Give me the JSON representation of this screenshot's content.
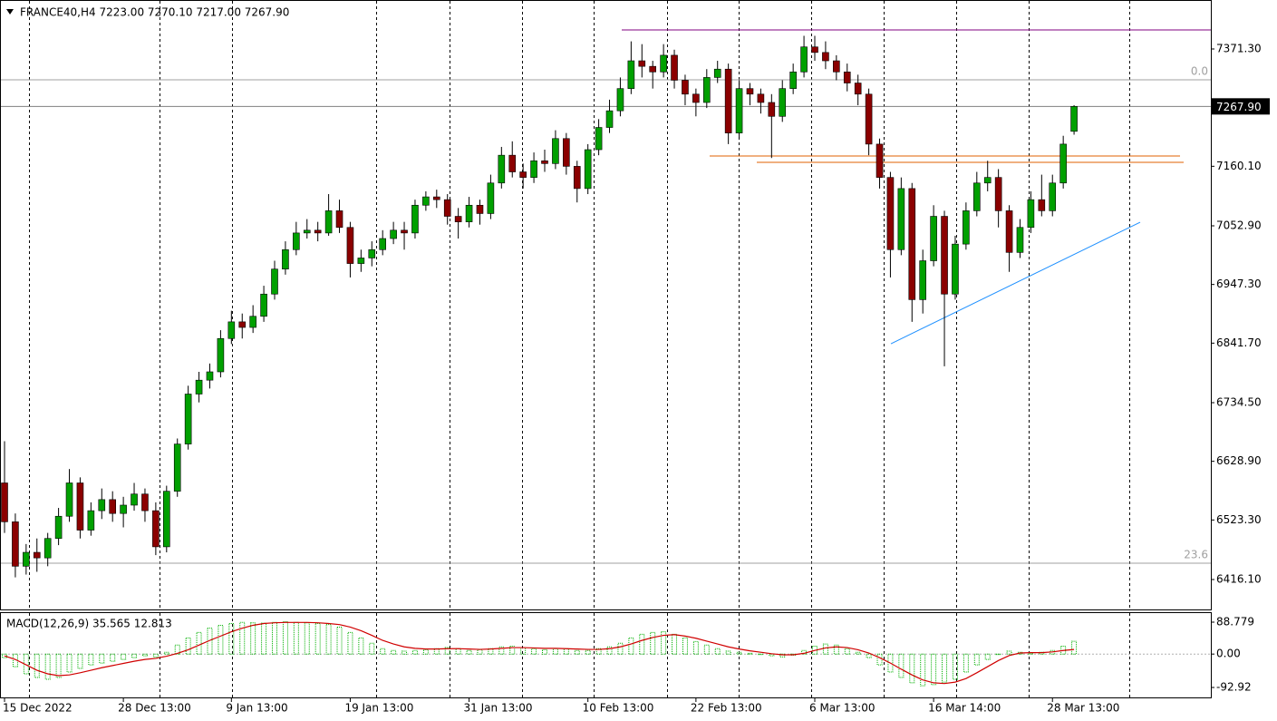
{
  "chart_data": [
    {
      "type": "candlestick",
      "title": "FRANCE40,H4  7223.00 7270.10 7217.00 7267.90",
      "categories": [
        "15 Dec 2022",
        null,
        null,
        null,
        null,
        null,
        null,
        null,
        null,
        null,
        null,
        "28 Dec 13:00",
        null,
        null,
        null,
        null,
        null,
        null,
        null,
        null,
        null,
        "9 Jan 13:00",
        null,
        null,
        null,
        null,
        null,
        null,
        null,
        null,
        null,
        null,
        "19 Jan 13:00",
        null,
        null,
        null,
        null,
        null,
        null,
        null,
        null,
        null,
        null,
        "31 Jan 13:00",
        null,
        null,
        null,
        null,
        null,
        null,
        null,
        null,
        null,
        null,
        "10 Feb 13:00",
        null,
        null,
        null,
        null,
        null,
        null,
        null,
        null,
        null,
        "22 Feb 13:00",
        null,
        null,
        null,
        null,
        null,
        null,
        null,
        null,
        null,
        null,
        "6 Mar 13:00",
        null,
        null,
        null,
        null,
        null,
        null,
        null,
        null,
        null,
        null,
        "16 Mar 14:00",
        null,
        null,
        null,
        null,
        null,
        null,
        null,
        null,
        null,
        null,
        "28 Mar 13:00",
        null,
        null
      ],
      "open": [
        6590,
        6520,
        6440,
        6465,
        6455,
        6490,
        6530,
        6590,
        6505,
        6540,
        6560,
        6535,
        6550,
        6570,
        6540,
        6475,
        6575,
        6660,
        6750,
        6775,
        6790,
        6850,
        6880,
        6870,
        6890,
        6930,
        6975,
        7010,
        7040,
        7045,
        7040,
        7080,
        7050,
        6985,
        6995,
        7010,
        7030,
        7045,
        7040,
        7090,
        7105,
        7100,
        7070,
        7060,
        7090,
        7075,
        7130,
        7180,
        7150,
        7140,
        7170,
        7165,
        7210,
        7160,
        7120,
        7190,
        7230,
        7260,
        7300,
        7350,
        7340,
        7330,
        7360,
        7315,
        7290,
        7275,
        7320,
        7335,
        7220,
        7300,
        7290,
        7275,
        7250,
        7300,
        7330,
        7375,
        7365,
        7350,
        7330,
        7310,
        7290,
        7200,
        7140,
        7010,
        7120,
        6920,
        6990,
        7070,
        6930,
        7020,
        7080,
        7130,
        7140,
        7080,
        7005,
        7050,
        7100,
        7080,
        7130,
        7223
      ],
      "high": [
        6665,
        6535,
        6480,
        6490,
        6500,
        6545,
        6615,
        6600,
        6555,
        6580,
        6575,
        6565,
        6590,
        6580,
        6555,
        6585,
        6670,
        6765,
        6790,
        6805,
        6865,
        6900,
        6895,
        6910,
        6945,
        6990,
        7025,
        7060,
        7065,
        7060,
        7110,
        7100,
        7060,
        7010,
        7025,
        7045,
        7060,
        7060,
        7100,
        7115,
        7118,
        7110,
        7085,
        7105,
        7100,
        7145,
        7195,
        7205,
        7165,
        7185,
        7190,
        7225,
        7220,
        7170,
        7200,
        7245,
        7280,
        7320,
        7385,
        7380,
        7350,
        7380,
        7370,
        7325,
        7300,
        7335,
        7350,
        7345,
        7315,
        7310,
        7300,
        7290,
        7315,
        7345,
        7395,
        7395,
        7385,
        7360,
        7345,
        7325,
        7300,
        7210,
        7150,
        7140,
        7130,
        7010,
        7090,
        7080,
        7035,
        7095,
        7150,
        7170,
        7155,
        7090,
        7065,
        7115,
        7145,
        7145,
        7215,
        7270.1
      ],
      "low": [
        6500,
        6420,
        6425,
        6430,
        6440,
        6478,
        6520,
        6490,
        6495,
        6525,
        6520,
        6510,
        6540,
        6520,
        6460,
        6465,
        6565,
        6650,
        6735,
        6760,
        6780,
        6840,
        6850,
        6860,
        6880,
        6920,
        6965,
        7000,
        7030,
        7025,
        7035,
        7040,
        6960,
        6970,
        6980,
        7000,
        7020,
        7010,
        7030,
        7080,
        7085,
        7055,
        7030,
        7050,
        7055,
        7065,
        7120,
        7140,
        7120,
        7130,
        7150,
        7155,
        7145,
        7095,
        7110,
        7180,
        7220,
        7250,
        7290,
        7320,
        7300,
        7320,
        7300,
        7270,
        7250,
        7265,
        7310,
        7200,
        7210,
        7270,
        7255,
        7175,
        7240,
        7290,
        7320,
        7350,
        7335,
        7315,
        7295,
        7270,
        7180,
        7120,
        6960,
        7000,
        6880,
        6895,
        6980,
        6800,
        6920,
        7010,
        7070,
        7115,
        7050,
        6970,
        6995,
        7040,
        7070,
        7070,
        7120,
        7217
      ],
      "close": [
        6520,
        6440,
        6465,
        6455,
        6490,
        6530,
        6590,
        6505,
        6540,
        6560,
        6535,
        6550,
        6570,
        6540,
        6475,
        6575,
        6660,
        6750,
        6775,
        6790,
        6850,
        6880,
        6870,
        6890,
        6930,
        6975,
        7010,
        7040,
        7045,
        7040,
        7080,
        7050,
        6985,
        6995,
        7010,
        7030,
        7045,
        7040,
        7090,
        7105,
        7100,
        7070,
        7060,
        7090,
        7075,
        7130,
        7180,
        7150,
        7140,
        7170,
        7165,
        7210,
        7160,
        7120,
        7190,
        7230,
        7260,
        7300,
        7350,
        7340,
        7330,
        7360,
        7315,
        7290,
        7275,
        7320,
        7335,
        7220,
        7300,
        7290,
        7275,
        7250,
        7300,
        7330,
        7375,
        7365,
        7350,
        7330,
        7310,
        7290,
        7200,
        7140,
        7010,
        7120,
        6920,
        6990,
        7070,
        6930,
        7020,
        7080,
        7130,
        7140,
        7080,
        7005,
        7050,
        7100,
        7080,
        7130,
        7200,
        7267.9
      ],
      "colors": {
        "up": "#00a000",
        "down": "#8b0000",
        "wick": "#000000"
      },
      "ylim": [
        6362.2,
        7451.3
      ],
      "yticks": [
        {
          "value": 7371.3,
          "label": "7371.30"
        },
        {
          "value": 7160.1,
          "label": "7160.10"
        },
        {
          "value": 7052.9,
          "label": "7052.90"
        },
        {
          "value": 6947.3,
          "label": "6947.30"
        },
        {
          "value": 6841.7,
          "label": "6841.70"
        },
        {
          "value": 6734.5,
          "label": "6734.50"
        },
        {
          "value": 6628.9,
          "label": "6628.90"
        },
        {
          "value": 6523.3,
          "label": "6523.30"
        },
        {
          "value": 6416.1,
          "label": "6416.10"
        }
      ],
      "last_price": {
        "value": 7267.9,
        "label": "7267.90"
      },
      "levels": [
        {
          "value": 7315.8,
          "label": "0.0"
        },
        {
          "value": 6445.5,
          "label": "23.6"
        }
      ],
      "hlines": [
        {
          "value": 7405.6,
          "color": "#800080"
        },
        {
          "value": 7178.6,
          "color": "#e06000"
        },
        {
          "value": 7167.2,
          "color": "#e06000"
        }
      ],
      "trendline": {
        "color": "#1e90ff",
        "values": [
          6840.6,
          7059.4
        ]
      }
    },
    {
      "type": "macd",
      "title": "MACD(12,26,9) 35.565 12.813",
      "histogram": {
        "color": "#00b000",
        "values": [
          -10,
          -35,
          -55,
          -65,
          -70,
          -65,
          -50,
          -40,
          -30,
          -25,
          -20,
          -15,
          -10,
          -5,
          -8,
          5,
          25,
          45,
          60,
          72,
          80,
          85,
          88,
          87,
          86,
          88,
          90,
          88,
          87,
          85,
          82,
          75,
          60,
          45,
          30,
          15,
          10,
          8,
          10,
          12,
          15,
          18,
          15,
          10,
          12,
          15,
          20,
          22,
          18,
          15,
          12,
          15,
          15,
          10,
          10,
          15,
          20,
          30,
          45,
          55,
          60,
          62,
          55,
          45,
          35,
          25,
          15,
          8,
          5,
          2,
          0,
          -5,
          -8,
          -3,
          10,
          22,
          28,
          25,
          15,
          5,
          -10,
          -30,
          -50,
          -65,
          -80,
          -88,
          -85,
          -78,
          -70,
          -50,
          -30,
          -15,
          0,
          8,
          5,
          2,
          5,
          10,
          22,
          35.565
        ]
      },
      "signal": {
        "color": "#d00000",
        "values": [
          -5,
          -15,
          -30,
          -45,
          -55,
          -60,
          -58,
          -52,
          -45,
          -38,
          -32,
          -26,
          -20,
          -15,
          -12,
          -6,
          2,
          12,
          25,
          38,
          50,
          62,
          72,
          80,
          85,
          87,
          88,
          88,
          88,
          87,
          85,
          82,
          75,
          65,
          52,
          38,
          28,
          20,
          16,
          14,
          14,
          15,
          15,
          14,
          13,
          14,
          16,
          18,
          18,
          17,
          16,
          16,
          15,
          14,
          13,
          13,
          15,
          20,
          28,
          38,
          46,
          52,
          54,
          50,
          44,
          36,
          28,
          20,
          14,
          9,
          5,
          1,
          -2,
          -2,
          2,
          10,
          17,
          20,
          18,
          12,
          3,
          -10,
          -25,
          -42,
          -58,
          -72,
          -80,
          -82,
          -78,
          -68,
          -52,
          -35,
          -18,
          -4,
          3,
          4,
          4,
          6,
          10,
          12.813
        ]
      },
      "ylim": [
        -120.6,
        114
      ],
      "yticks": [
        88.779,
        {
          "value": 0,
          "label": "0.00"
        },
        -92.92
      ]
    }
  ]
}
